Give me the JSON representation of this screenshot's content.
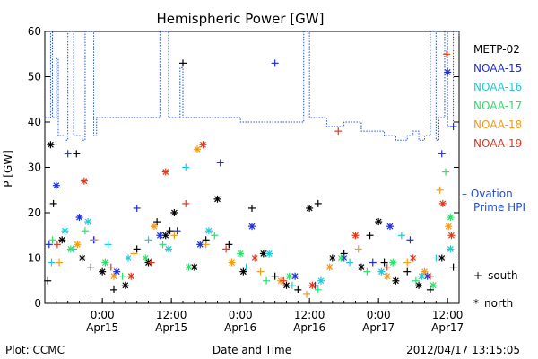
{
  "chart_data": {
    "type": "scatter",
    "title": "Hemispheric Power [GW]",
    "ylabel": "P [GW]",
    "xlabel": "Date and Time",
    "ylim": [
      0,
      60
    ],
    "xlim": [
      "2012-04-14 14:00",
      "2012-04-17 14:00"
    ],
    "yticks": [
      0,
      10,
      20,
      30,
      40,
      50,
      60
    ],
    "xticks": [
      {
        "x": "2012-04-15 00:00",
        "line1": "0:00",
        "line2": "Apr15"
      },
      {
        "x": "2012-04-15 12:00",
        "line1": "12:00",
        "line2": "Apr15"
      },
      {
        "x": "2012-04-16 00:00",
        "line1": "0:00",
        "line2": "Apr16"
      },
      {
        "x": "2012-04-16 12:00",
        "line1": "12:00",
        "line2": "Apr16"
      },
      {
        "x": "2012-04-17 00:00",
        "line1": "0:00",
        "line2": "Apr17"
      },
      {
        "x": "2012-04-17 12:00",
        "line1": "12:00",
        "line2": "Apr17"
      }
    ],
    "legend_position": "right",
    "ovation": {
      "label_line1": "– Ovation",
      "label_line2": "Prime HPI",
      "color": "#1f4fd6",
      "x": [
        "2012-04-14 14:00",
        "2012-04-14 15:00",
        "2012-04-14 15:20",
        "2012-04-14 16:00",
        "2012-04-14 16:20",
        "2012-04-14 17:30",
        "2012-04-14 18:00",
        "2012-04-14 19:00",
        "2012-04-14 19:20",
        "2012-04-14 20:30",
        "2012-04-14 21:00",
        "2012-04-14 22:30",
        "2012-04-14 23:00",
        "2012-04-15 02:00",
        "2012-04-15 06:00",
        "2012-04-15 09:30",
        "2012-04-15 10:00",
        "2012-04-15 11:30",
        "2012-04-15 12:00",
        "2012-04-15 13:30",
        "2012-04-15 14:00",
        "2012-04-15 17:00",
        "2012-04-15 21:00",
        "2012-04-16 00:00",
        "2012-04-16 03:00",
        "2012-04-16 06:00",
        "2012-04-16 09:00",
        "2012-04-16 10:30",
        "2012-04-16 11:00",
        "2012-04-16 12:00",
        "2012-04-16 12:30",
        "2012-04-16 15:00",
        "2012-04-16 18:00",
        "2012-04-16 20:00",
        "2012-04-16 21:00",
        "2012-04-17 01:00",
        "2012-04-17 03:00",
        "2012-04-17 05:00",
        "2012-04-17 06:00",
        "2012-04-17 07:00",
        "2012-04-17 08:00",
        "2012-04-17 09:00",
        "2012-04-17 10:00",
        "2012-04-17 10:30",
        "2012-04-17 11:30",
        "2012-04-17 12:00",
        "2012-04-17 13:00",
        "2012-04-17 14:00"
      ],
      "y": [
        41,
        60,
        41,
        54,
        37,
        36,
        60,
        37,
        37,
        36,
        60,
        37,
        41,
        41,
        41,
        41,
        60,
        41,
        41,
        52,
        41,
        41,
        41,
        40,
        40,
        40,
        40,
        40,
        60,
        41,
        41,
        39,
        40,
        40,
        38,
        37,
        36,
        37,
        38,
        36,
        37,
        60,
        36,
        41,
        60,
        39,
        60,
        59
      ]
    },
    "series": [
      {
        "name": "METP-02",
        "color": "#000000",
        "x": [
          "2012-04-14 14:30",
          "2012-04-14 15:00",
          "2012-04-14 15:30",
          "2012-04-14 17:00",
          "2012-04-14 19:30",
          "2012-04-14 20:30",
          "2012-04-14 22:00",
          "2012-04-15 00:00",
          "2012-04-15 02:00",
          "2012-04-15 04:00",
          "2012-04-15 06:00",
          "2012-04-15 08:00",
          "2012-04-15 09:30",
          "2012-04-15 11:00",
          "2012-04-15 11:45",
          "2012-04-15 12:30",
          "2012-04-15 14:00",
          "2012-04-15 16:00",
          "2012-04-15 18:00",
          "2012-04-15 20:00",
          "2012-04-15 22:00",
          "2012-04-16 00:30",
          "2012-04-16 02:00",
          "2012-04-16 04:00",
          "2012-04-16 06:00",
          "2012-04-16 08:00",
          "2012-04-16 10:00",
          "2012-04-16 12:00",
          "2012-04-16 13:30",
          "2012-04-16 16:00",
          "2012-04-16 18:00",
          "2012-04-16 21:00",
          "2012-04-16 22:30",
          "2012-04-17 00:00",
          "2012-04-17 01:00",
          "2012-04-17 03:00",
          "2012-04-17 05:00",
          "2012-04-17 07:00",
          "2012-04-17 09:00",
          "2012-04-17 11:00",
          "2012-04-17 13:00"
        ],
        "y": [
          5,
          35,
          22,
          14,
          33,
          10,
          8,
          7,
          3,
          4,
          12,
          9,
          18,
          15,
          16,
          20,
          53,
          8,
          14,
          23,
          13,
          7,
          21,
          11,
          6,
          4,
          3,
          21,
          22,
          10,
          11,
          8,
          15,
          18,
          9,
          5,
          7,
          4,
          3,
          10,
          8
        ]
      },
      {
        "name": "NOAA-15",
        "color": "#1f2fd6",
        "x": [
          "2012-04-14 14:45",
          "2012-04-14 16:00",
          "2012-04-14 18:00",
          "2012-04-14 20:00",
          "2012-04-14 22:30",
          "2012-04-15 02:30",
          "2012-04-15 06:00",
          "2012-04-15 10:00",
          "2012-04-15 13:00",
          "2012-04-15 17:00",
          "2012-04-15 20:30",
          "2012-04-16 02:00",
          "2012-04-16 06:00",
          "2012-04-16 09:30",
          "2012-04-16 13:00",
          "2012-04-16 18:00",
          "2012-04-16 23:00",
          "2012-04-17 02:00",
          "2012-04-17 05:30",
          "2012-04-17 08:30",
          "2012-04-17 11:00",
          "2012-04-17 12:00",
          "2012-04-17 13:00"
        ],
        "y": [
          13,
          26,
          33,
          19,
          14,
          7,
          21,
          15,
          16,
          13,
          31,
          17,
          53,
          6,
          4,
          10,
          9,
          17,
          14,
          6,
          33,
          51,
          39
        ]
      },
      {
        "name": "NOAA-16",
        "color": "#1fc8d6",
        "x": [
          "2012-04-14 15:10",
          "2012-04-14 17:30",
          "2012-04-14 19:00",
          "2012-04-14 21:30",
          "2012-04-15 01:00",
          "2012-04-15 04:30",
          "2012-04-15 08:00",
          "2012-04-15 11:30",
          "2012-04-15 14:30",
          "2012-04-15 18:30",
          "2012-04-16 01:00",
          "2012-04-16 05:00",
          "2012-04-16 09:00",
          "2012-04-16 14:00",
          "2012-04-16 19:00",
          "2012-04-17 00:30",
          "2012-04-17 04:00",
          "2012-04-17 07:30",
          "2012-04-17 10:00",
          "2012-04-17 12:30"
        ],
        "y": [
          9,
          16,
          12,
          18,
          13,
          10,
          14,
          12,
          30,
          16,
          8,
          11,
          4,
          5,
          9,
          7,
          15,
          6,
          10,
          12
        ]
      },
      {
        "name": "NOAA-17",
        "color": "#2ee06a",
        "x": [
          "2012-04-14 15:20",
          "2012-04-14 18:30",
          "2012-04-14 21:00",
          "2012-04-15 00:30",
          "2012-04-15 03:30",
          "2012-04-15 07:30",
          "2012-04-15 10:30",
          "2012-04-15 15:00",
          "2012-04-15 19:30",
          "2012-04-16 00:00",
          "2012-04-16 04:30",
          "2012-04-16 08:30",
          "2012-04-16 13:30",
          "2012-04-16 17:30",
          "2012-04-16 22:00",
          "2012-04-17 02:30",
          "2012-04-17 06:30",
          "2012-04-17 09:30",
          "2012-04-17 11:40",
          "2012-04-17 12:30"
        ],
        "y": [
          14,
          12,
          16,
          9,
          6,
          10,
          13,
          8,
          15,
          11,
          5,
          6,
          3,
          10,
          7,
          9,
          5,
          4,
          29,
          19
        ]
      },
      {
        "name": "NOAA-18",
        "color": "#f59a1a",
        "x": [
          "2012-04-14 16:30",
          "2012-04-14 19:40",
          "2012-04-14 22:40",
          "2012-04-15 02:00",
          "2012-04-15 05:30",
          "2012-04-15 09:00",
          "2012-04-15 12:30",
          "2012-04-15 16:30",
          "2012-04-15 18:00",
          "2012-04-15 22:30",
          "2012-04-16 03:30",
          "2012-04-16 07:00",
          "2012-04-16 11:30",
          "2012-04-16 15:30",
          "2012-04-16 20:30",
          "2012-04-17 01:30",
          "2012-04-17 05:00",
          "2012-04-17 08:00",
          "2012-04-17 10:40",
          "2012-04-17 12:10"
        ],
        "y": [
          9,
          13,
          14,
          6,
          11,
          17,
          15,
          34,
          13,
          9,
          7,
          5,
          2,
          8,
          12,
          6,
          9,
          7,
          25,
          17
        ]
      },
      {
        "name": "NOAA-19",
        "color": "#e0381a",
        "x": [
          "2012-04-14 16:10",
          "2012-04-14 20:50",
          "2012-04-15 01:30",
          "2012-04-15 05:00",
          "2012-04-15 08:30",
          "2012-04-15 11:00",
          "2012-04-15 14:30",
          "2012-04-15 17:30",
          "2012-04-15 21:30",
          "2012-04-16 02:30",
          "2012-04-16 07:30",
          "2012-04-16 12:30",
          "2012-04-16 17:00",
          "2012-04-16 20:00",
          "2012-04-17 01:30",
          "2012-04-17 06:00",
          "2012-04-17 09:00",
          "2012-04-17 11:10",
          "2012-04-17 11:50",
          "2012-04-17 12:40"
        ],
        "y": [
          13,
          27,
          8,
          6,
          9,
          29,
          22,
          35,
          12,
          10,
          5,
          4,
          38,
          15,
          8,
          10,
          6,
          22,
          55,
          15
        ]
      }
    ],
    "markers": [
      {
        "symbol": "+",
        "label": "south"
      },
      {
        "symbol": "*",
        "label": "north"
      }
    ]
  },
  "footer": {
    "plot_credit": "Plot: CCMC",
    "timestamp": "2012/04/17 13:15:05"
  }
}
